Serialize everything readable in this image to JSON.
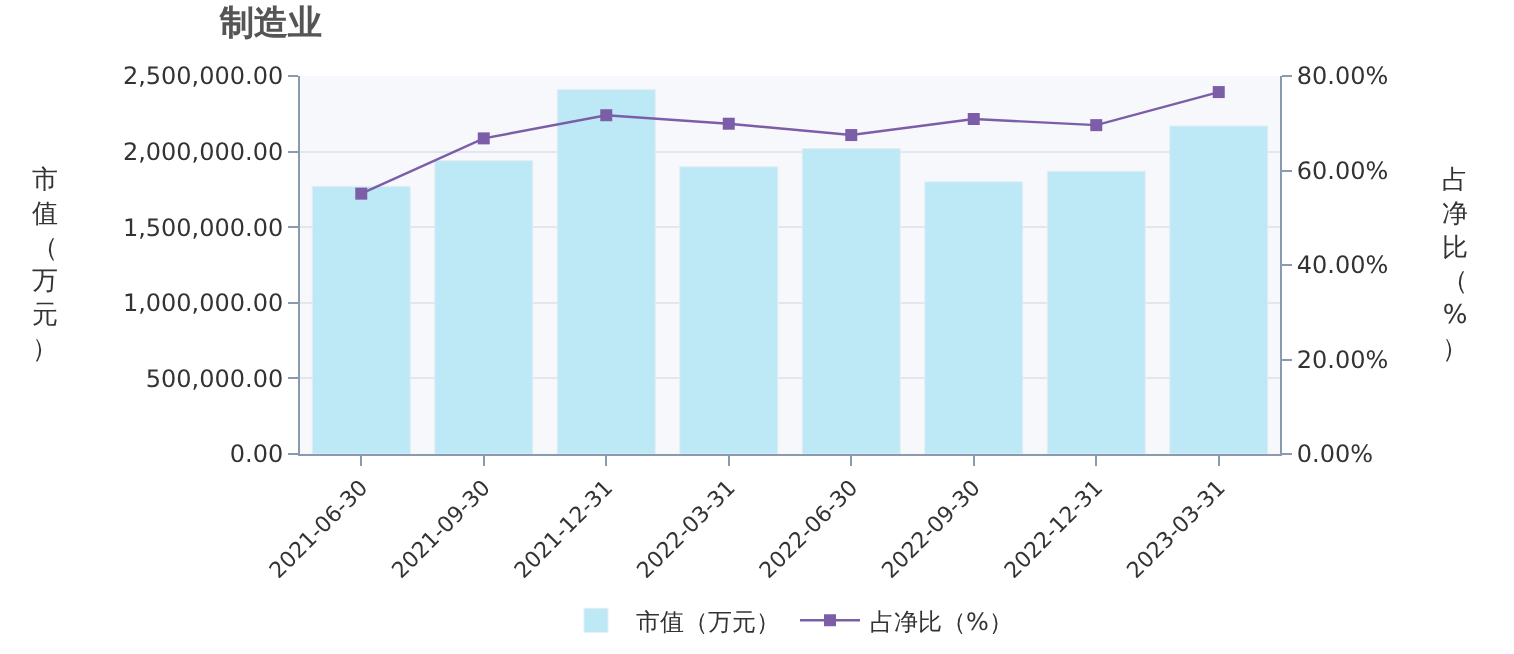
{
  "chart_data": {
    "type": "bar",
    "title": "制造业",
    "ylabel": "市值（万元）",
    "y2label": "占净比（%）",
    "categories": [
      "2021-06-30",
      "2021-09-30",
      "2021-12-31",
      "2022-03-31",
      "2022-06-30",
      "2022-09-30",
      "2022-12-31",
      "2023-03-31"
    ],
    "series": [
      {
        "name": "市值（万元）",
        "color": "#bde8f5",
        "values": [
          1770000,
          1940000,
          2410000,
          1900000,
          2020000,
          1800000,
          1870000,
          2170000
        ]
      },
      {
        "name": "占净比（%）",
        "type": "line",
        "axis": "y2",
        "color": "#7b5ea7",
        "marker": "square",
        "values": [
          55.1,
          66.8,
          71.7,
          69.9,
          67.5,
          70.9,
          69.6,
          76.6
        ]
      }
    ],
    "ylim": [
      0,
      2500000
    ],
    "yticks": [
      {
        "value": 0,
        "label": "0.00"
      },
      {
        "value": 500000,
        "label": "500,000.00"
      },
      {
        "value": 1000000,
        "label": "1,000,000.00"
      },
      {
        "value": 1500000,
        "label": "1,500,000.00"
      },
      {
        "value": 2000000,
        "label": "2,000,000.00"
      },
      {
        "value": 2500000,
        "label": "2,500,000.00"
      }
    ],
    "y2lim": [
      0,
      80
    ],
    "y2ticks": [
      {
        "value": 0,
        "label": "0.00%"
      },
      {
        "value": 20,
        "label": "20.00%"
      },
      {
        "value": 40,
        "label": "40.00%"
      },
      {
        "value": 60,
        "label": "60.00%"
      },
      {
        "value": 80,
        "label": "80.00%"
      }
    ],
    "grid": "y",
    "legend": "bottom"
  }
}
